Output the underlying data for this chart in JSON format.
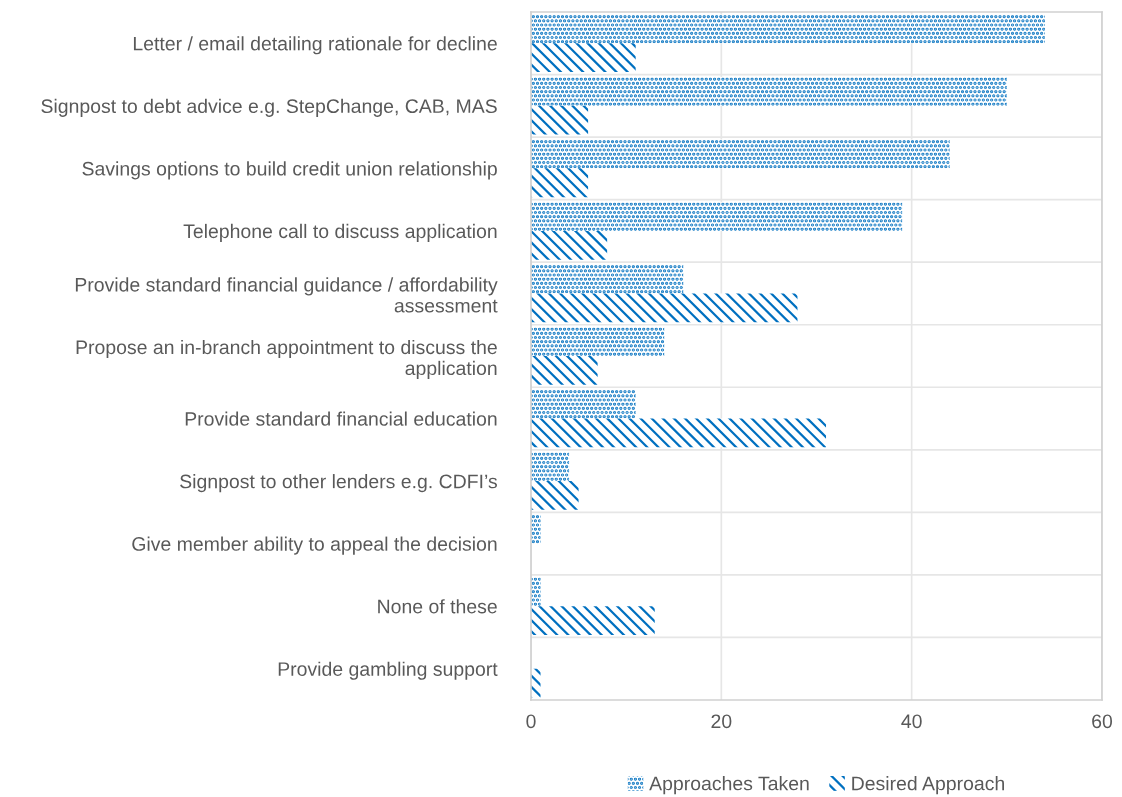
{
  "chart_data": {
    "type": "bar",
    "orientation": "horizontal",
    "categories": [
      "Letter / email detailing rationale for decline",
      "Signpost to debt advice e.g. StepChange, CAB, MAS",
      "Savings options to build credit union relationship",
      "Telephone call to discuss application",
      "Provide standard financial guidance / affordability assessment",
      "Propose an in-branch appointment to discuss the application",
      "Provide standard financial education",
      "Signpost to other lenders e.g. CDFI’s",
      "Give member ability to appeal the decision",
      "None of these",
      "Provide gambling support"
    ],
    "series": [
      {
        "name": "Approaches Taken",
        "color": "#0070c0",
        "values": [
          54,
          50,
          44,
          39,
          16,
          14,
          11,
          4,
          1,
          1,
          null
        ]
      },
      {
        "name": "Desired Approach",
        "color": "#0070c0",
        "values": [
          11,
          6,
          6,
          8,
          28,
          7,
          31,
          5,
          null,
          13,
          1
        ]
      }
    ],
    "xlim": [
      0,
      60
    ],
    "xticks": [
      0,
      20,
      40,
      60
    ],
    "grid": true,
    "legend": "bottom"
  }
}
